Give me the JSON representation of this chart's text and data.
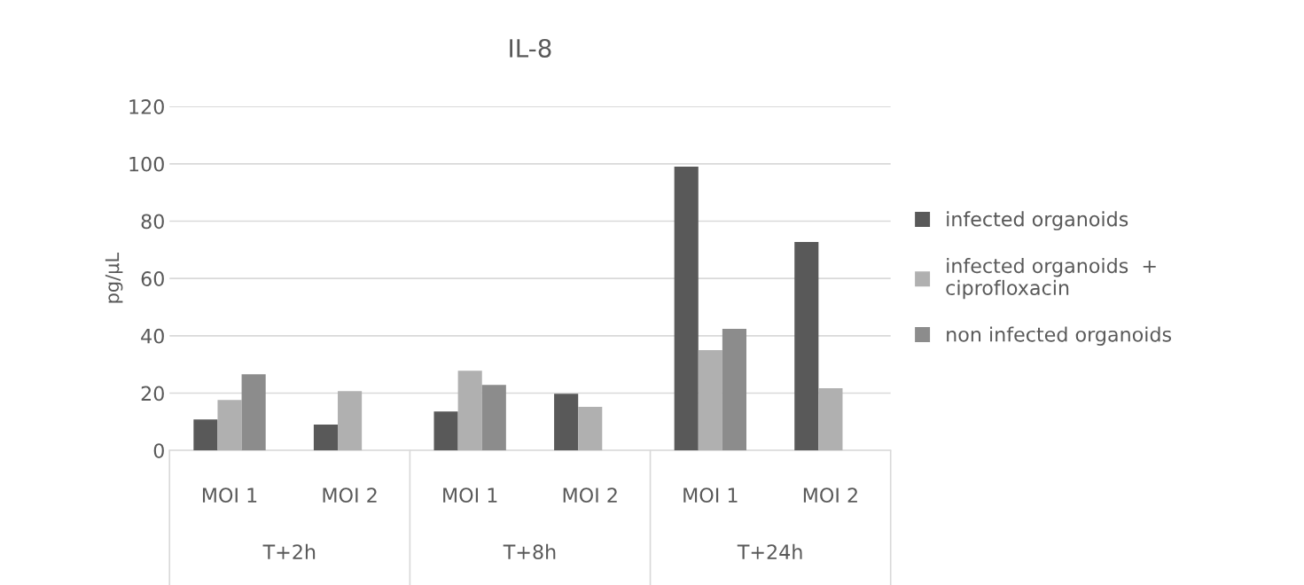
{
  "chart_data": {
    "type": "bar",
    "title": "IL-8",
    "ylabel": "pg/µL",
    "categories": [
      "MOI 1",
      "MOI 2",
      "MOI 1",
      "MOI 2",
      "MOI 1",
      "MOI 2"
    ],
    "annotations": [
      "T+2h",
      "T+8h",
      "T+24h"
    ],
    "series": [
      {
        "name": "infected organoids",
        "color": "#595959",
        "values": [
          10.8,
          9,
          13.6,
          19.8,
          99,
          72.7
        ]
      },
      {
        "name": "infected organoids  + ciprofloxacin",
        "color": "#b0b0b0",
        "values": [
          17.6,
          20.7,
          27.8,
          15.2,
          35,
          21.7
        ]
      },
      {
        "name": "non infected organoids",
        "color": "#8c8c8c",
        "values": [
          26.6,
          null,
          22.9,
          null,
          42.4,
          null
        ]
      }
    ],
    "ylim": [
      0,
      120
    ],
    "yticks": [
      0,
      20,
      40,
      60,
      80,
      100,
      120
    ],
    "grid": "y",
    "legend": "right"
  }
}
